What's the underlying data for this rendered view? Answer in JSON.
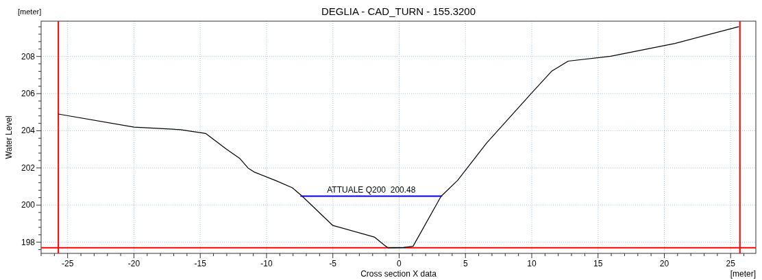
{
  "chart_data": {
    "type": "line",
    "title": "DEGLIA - CAD_TURN - 155.3200",
    "xlabel": "Cross section X data",
    "ylabel": "Water Level",
    "annotations": [
      "[meter]",
      "[meter]"
    ],
    "xlim": [
      -27,
      26.9
    ],
    "ylim": [
      197.4,
      209.9
    ],
    "xticks": [
      -25,
      -20,
      -15,
      -10,
      -5,
      0,
      5,
      10,
      15,
      20,
      25,
      {
        "value": -27,
        "label": null
      },
      {
        "value": -26,
        "label": null
      },
      {
        "value": -24,
        "label": null
      },
      {
        "value": -23,
        "label": null
      },
      {
        "value": -22,
        "label": null
      },
      {
        "value": -21,
        "label": null
      },
      {
        "value": -19,
        "label": null
      },
      {
        "value": -18,
        "label": null
      },
      {
        "value": -17,
        "label": null
      },
      {
        "value": -16,
        "label": null
      },
      {
        "value": -14,
        "label": null
      },
      {
        "value": -13,
        "label": null
      },
      {
        "value": -12,
        "label": null
      },
      {
        "value": -11,
        "label": null
      },
      {
        "value": -9,
        "label": null
      },
      {
        "value": -8,
        "label": null
      },
      {
        "value": -7,
        "label": null
      },
      {
        "value": -6,
        "label": null
      },
      {
        "value": -4,
        "label": null
      },
      {
        "value": -3,
        "label": null
      },
      {
        "value": -2,
        "label": null
      },
      {
        "value": -1,
        "label": null
      },
      {
        "value": 1,
        "label": null
      },
      {
        "value": 2,
        "label": null
      },
      {
        "value": 3,
        "label": null
      },
      {
        "value": 4,
        "label": null
      },
      {
        "value": 6,
        "label": null
      },
      {
        "value": 7,
        "label": null
      },
      {
        "value": 8,
        "label": null
      },
      {
        "value": 9,
        "label": null
      },
      {
        "value": 11,
        "label": null
      },
      {
        "value": 12,
        "label": null
      },
      {
        "value": 13,
        "label": null
      },
      {
        "value": 14,
        "label": null
      },
      {
        "value": 16,
        "label": null
      },
      {
        "value": 17,
        "label": null
      },
      {
        "value": 18,
        "label": null
      },
      {
        "value": 19,
        "label": null
      },
      {
        "value": 21,
        "label": null
      },
      {
        "value": 22,
        "label": null
      },
      {
        "value": 23,
        "label": null
      },
      {
        "value": 24,
        "label": null
      },
      {
        "value": 26,
        "label": null
      }
    ],
    "yticks": [
      198,
      200,
      202,
      204,
      206,
      208,
      {
        "value": 197.6,
        "label": null
      },
      {
        "value": 198.4,
        "label": null
      },
      {
        "value": 198.8,
        "label": null
      },
      {
        "value": 199.2,
        "label": null
      },
      {
        "value": 199.6,
        "label": null
      },
      {
        "value": 200.4,
        "label": null
      },
      {
        "value": 200.8,
        "label": null
      },
      {
        "value": 201.2,
        "label": null
      },
      {
        "value": 201.6,
        "label": null
      },
      {
        "value": 202.4,
        "label": null
      },
      {
        "value": 202.8,
        "label": null
      },
      {
        "value": 203.2,
        "label": null
      },
      {
        "value": 203.6,
        "label": null
      },
      {
        "value": 204.4,
        "label": null
      },
      {
        "value": 204.8,
        "label": null
      },
      {
        "value": 205.2,
        "label": null
      },
      {
        "value": 205.6,
        "label": null
      },
      {
        "value": 206.4,
        "label": null
      },
      {
        "value": 206.8,
        "label": null
      },
      {
        "value": 207.2,
        "label": null
      },
      {
        "value": 207.6,
        "label": null
      },
      {
        "value": 208.4,
        "label": null
      },
      {
        "value": 208.8,
        "label": null
      },
      {
        "value": 209.2,
        "label": null
      },
      {
        "value": 209.6,
        "label": null
      }
    ],
    "grid": true,
    "series": [
      {
        "color": "#000000",
        "x": [
          -25.7,
          -20,
          -16.5,
          -14.6,
          -13,
          -12,
          -11.4,
          -10.9,
          -9.25,
          -8.05,
          -7.3,
          -5,
          -1.87,
          -1.16,
          -0.85,
          0.34,
          1.05,
          3.16,
          4.41,
          6.6,
          9.95,
          11.52,
          12.75,
          15.95,
          20.8,
          25.6
        ],
        "values": [
          204.9,
          204.2,
          204.06,
          203.86,
          203,
          202.5,
          202,
          201.77,
          201.3,
          200.93,
          200.47,
          198.9,
          198.28,
          197.87,
          197.7,
          197.72,
          197.78,
          200.47,
          201.33,
          203.34,
          206,
          207.22,
          207.75,
          208.01,
          208.7,
          209.6
        ]
      },
      {
        "name": "ATTUALE Q200  200.48",
        "color": "#0000ff",
        "x": [
          -7.4,
          3.2
        ],
        "values": [
          200.48,
          200.48
        ]
      }
    ],
    "ref_lines": [
      {
        "axis": "x",
        "value": -25.7,
        "color": "#ff0000"
      },
      {
        "axis": "x",
        "value": 25.7,
        "color": "#ff0000"
      },
      {
        "axis": "y",
        "value": 197.7,
        "color": "#ff0000"
      }
    ]
  }
}
